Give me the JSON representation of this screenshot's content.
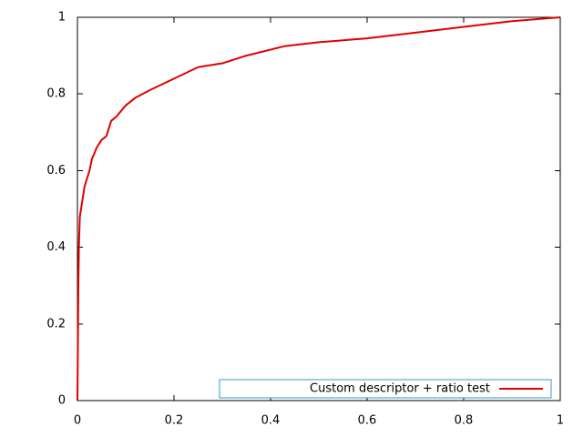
{
  "chart_data": {
    "type": "line",
    "x": [
      0,
      0.002,
      0.003,
      0.005,
      0.01,
      0.015,
      0.025,
      0.03,
      0.04,
      0.05,
      0.06,
      0.07,
      0.08,
      0.1,
      0.12,
      0.15,
      0.2,
      0.25,
      0.3,
      0.35,
      0.43,
      0.5,
      0.6,
      0.7,
      0.8,
      0.9,
      1
    ],
    "series": [
      {
        "name": "Custom descriptor + ratio test",
        "color": "#e00000",
        "values": [
          0,
          0.31,
          0.4,
          0.48,
          0.52,
          0.56,
          0.6,
          0.63,
          0.66,
          0.68,
          0.69,
          0.73,
          0.74,
          0.77,
          0.79,
          0.81,
          0.84,
          0.87,
          0.88,
          0.9,
          0.925,
          0.935,
          0.945,
          0.96,
          0.975,
          0.99,
          1
        ]
      }
    ],
    "xlim": [
      0,
      1
    ],
    "ylim": [
      0,
      1
    ],
    "xticks": [
      0,
      0.2,
      0.4,
      0.6,
      0.8,
      1
    ],
    "yticks": [
      0,
      0.2,
      0.4,
      0.6,
      0.8,
      1
    ],
    "grid": false,
    "legend": "bottom-right"
  }
}
